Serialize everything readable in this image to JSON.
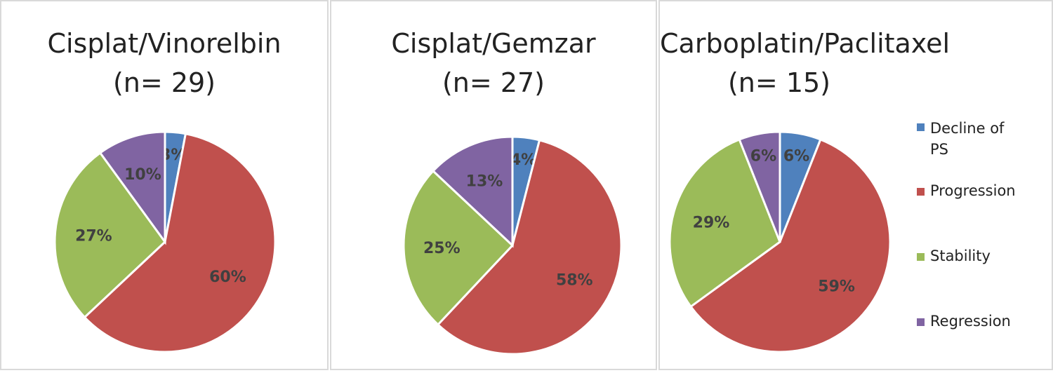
{
  "chart_data": [
    {
      "type": "pie",
      "title": "Cisplat/Vinorelbin",
      "subtitle": "(n= 29)",
      "categories": [
        "Decline of PS",
        "Progression",
        "Stability",
        "Regression"
      ],
      "values": [
        3,
        60,
        27,
        10
      ],
      "labels": [
        "3%",
        "60%",
        "27%",
        "10%"
      ]
    },
    {
      "type": "pie",
      "title": "Cisplat/Gemzar",
      "subtitle": "(n= 27)",
      "categories": [
        "Decline of PS",
        "Progression",
        "Stability",
        "Regression"
      ],
      "values": [
        4,
        58,
        25,
        13
      ],
      "labels": [
        "4%",
        "58%",
        "25%",
        "13%"
      ]
    },
    {
      "type": "pie",
      "title": "Carboplatin/Paclitaxel",
      "subtitle": "(n= 15)",
      "categories": [
        "Decline of PS",
        "Progression",
        "Stability",
        "Regression"
      ],
      "values": [
        6,
        59,
        29,
        6
      ],
      "labels": [
        "6%",
        "59%",
        "29%",
        "6%"
      ]
    }
  ],
  "legend": {
    "placement": "right",
    "items": [
      "Decline of PS",
      "Progression",
      "Stability",
      "Regression"
    ]
  },
  "colors": [
    "#4f81bd",
    "#c0504d",
    "#9bbb59",
    "#8064a2"
  ]
}
